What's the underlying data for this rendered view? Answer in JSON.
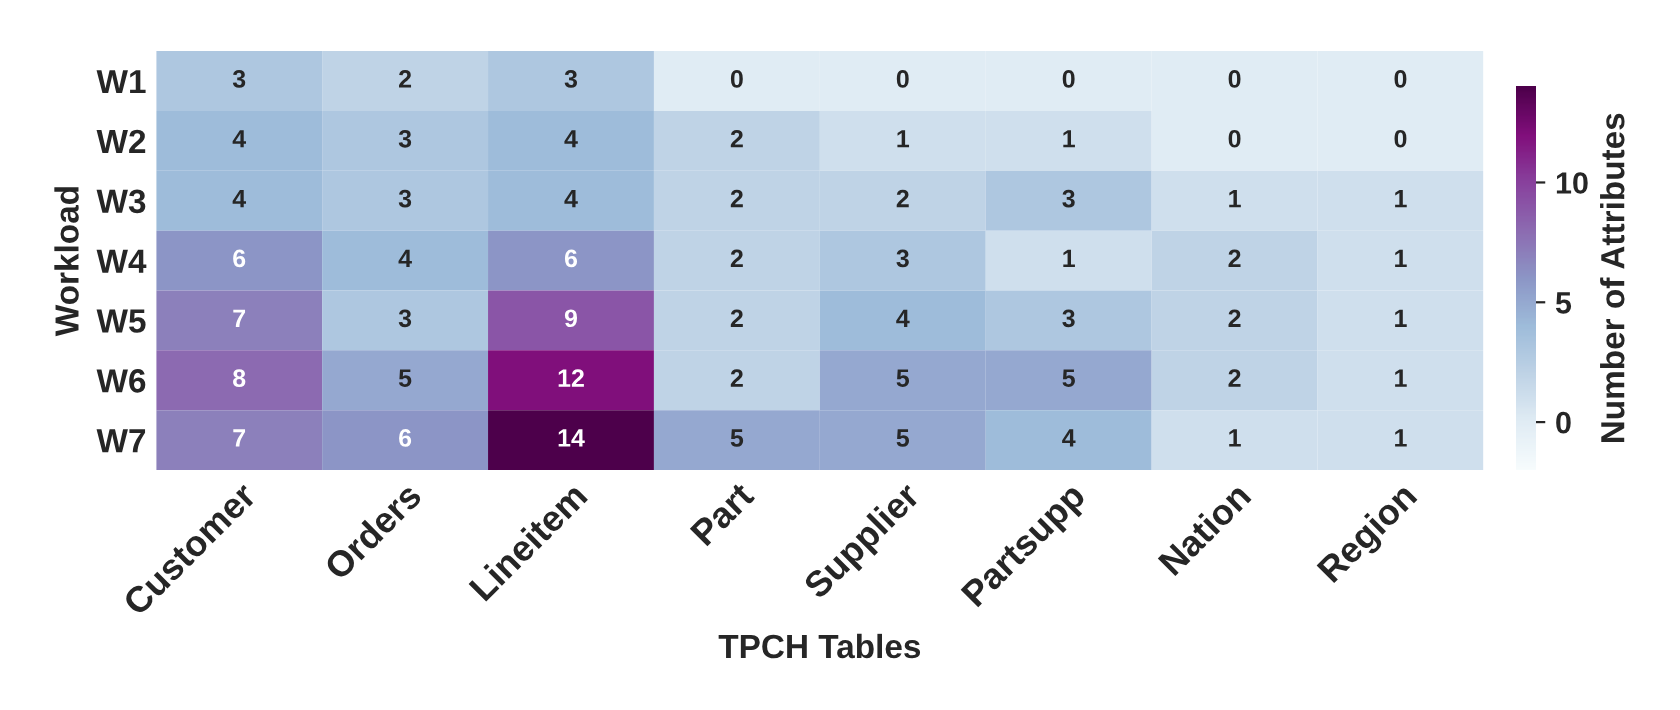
{
  "chart_data": {
    "type": "heatmap",
    "xlabel": "TPCH Tables",
    "ylabel": "Workload",
    "clabel": "Number of Attributes",
    "categories": [
      "Customer",
      "Orders",
      "Lineitem",
      "Part",
      "Supplier",
      "Partsupp",
      "Nation",
      "Region"
    ],
    "y_categories": [
      "W1",
      "W2",
      "W3",
      "W4",
      "W5",
      "W6",
      "W7"
    ],
    "cells": [
      [
        3,
        2,
        3,
        0,
        0,
        0,
        0,
        0
      ],
      [
        4,
        3,
        4,
        2,
        1,
        1,
        0,
        0
      ],
      [
        4,
        3,
        4,
        2,
        2,
        3,
        1,
        1
      ],
      [
        6,
        4,
        6,
        2,
        3,
        1,
        2,
        1
      ],
      [
        7,
        3,
        9,
        2,
        4,
        3,
        2,
        1
      ],
      [
        8,
        5,
        12,
        2,
        5,
        5,
        2,
        1
      ],
      [
        7,
        6,
        14,
        5,
        5,
        4,
        1,
        1
      ]
    ],
    "clim": [
      -2,
      14
    ],
    "cticks": [
      0,
      5,
      10
    ],
    "data_labels": true
  }
}
